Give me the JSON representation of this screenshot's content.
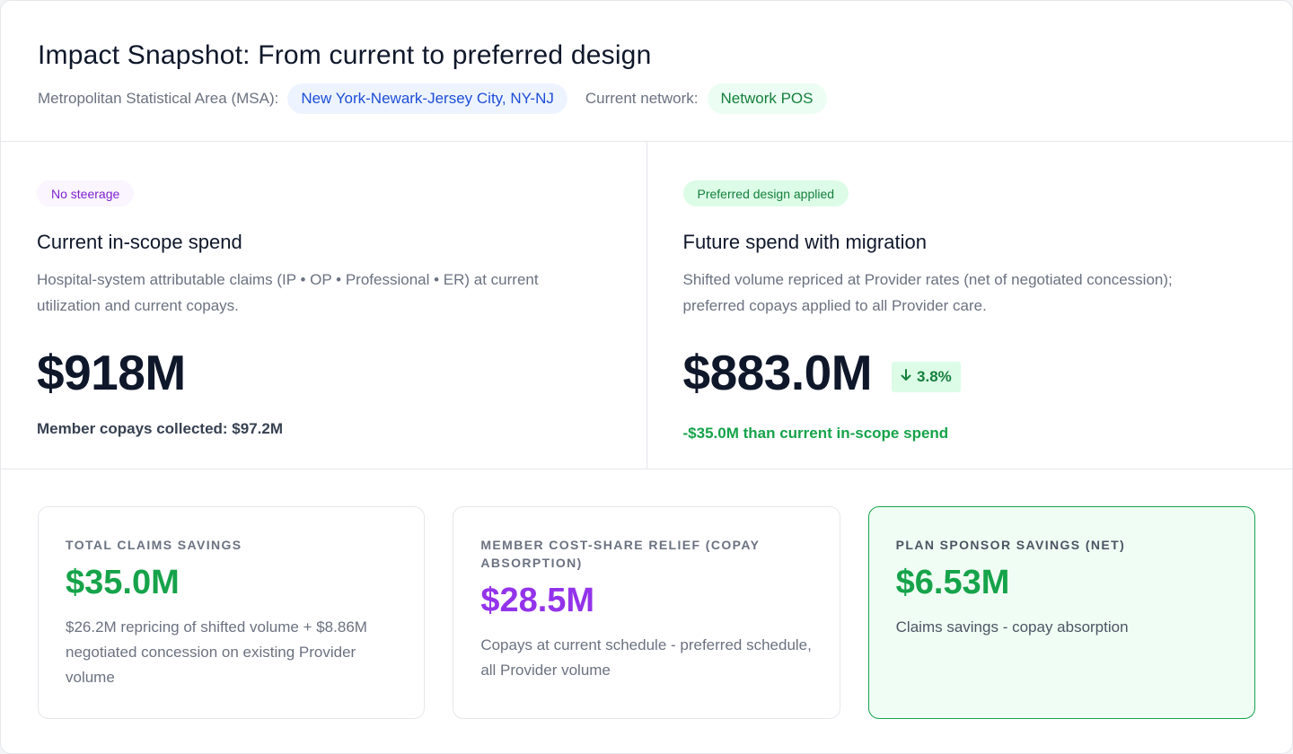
{
  "header": {
    "title": "Impact Snapshot: From current to preferred design",
    "msa_label": "Metropolitan Statistical Area (MSA):",
    "msa_value": "New York-Newark-Jersey City, NY-NJ",
    "network_label": "Current network:",
    "network_value": "Network POS"
  },
  "current": {
    "badge": "No steerage",
    "title": "Current in-scope spend",
    "description": "Hospital-system attributable claims (IP • OP • Professional • ER) at current utilization and current copays.",
    "value": "$918M",
    "footnote": "Member copays collected: $97.2M"
  },
  "future": {
    "badge": "Preferred design applied",
    "title": "Future spend with migration",
    "description": "Shifted volume repriced at Provider rates (net of negotiated concession); preferred copays applied to all Provider care.",
    "value": "$883.0M",
    "delta_icon": "arrow-down-icon",
    "delta": "3.8%",
    "footnote": "-$35.0M than current in-scope spend"
  },
  "metrics": [
    {
      "label": "TOTAL CLAIMS SAVINGS",
      "value": "$35.0M",
      "description": "$26.2M repricing of shifted volume + $8.86M negotiated concession on existing Provider volume",
      "color": "#16a34a"
    },
    {
      "label": "MEMBER COST-SHARE RELIEF (COPAY ABSORPTION)",
      "value": "$28.5M",
      "description": "Copays at current schedule - preferred schedule, all Provider volume",
      "color": "#9333ea"
    },
    {
      "label": "PLAN SPONSOR SAVINGS (NET)",
      "value": "$6.53M",
      "description": "Claims savings - copay absorption",
      "color": "#16a34a"
    }
  ]
}
